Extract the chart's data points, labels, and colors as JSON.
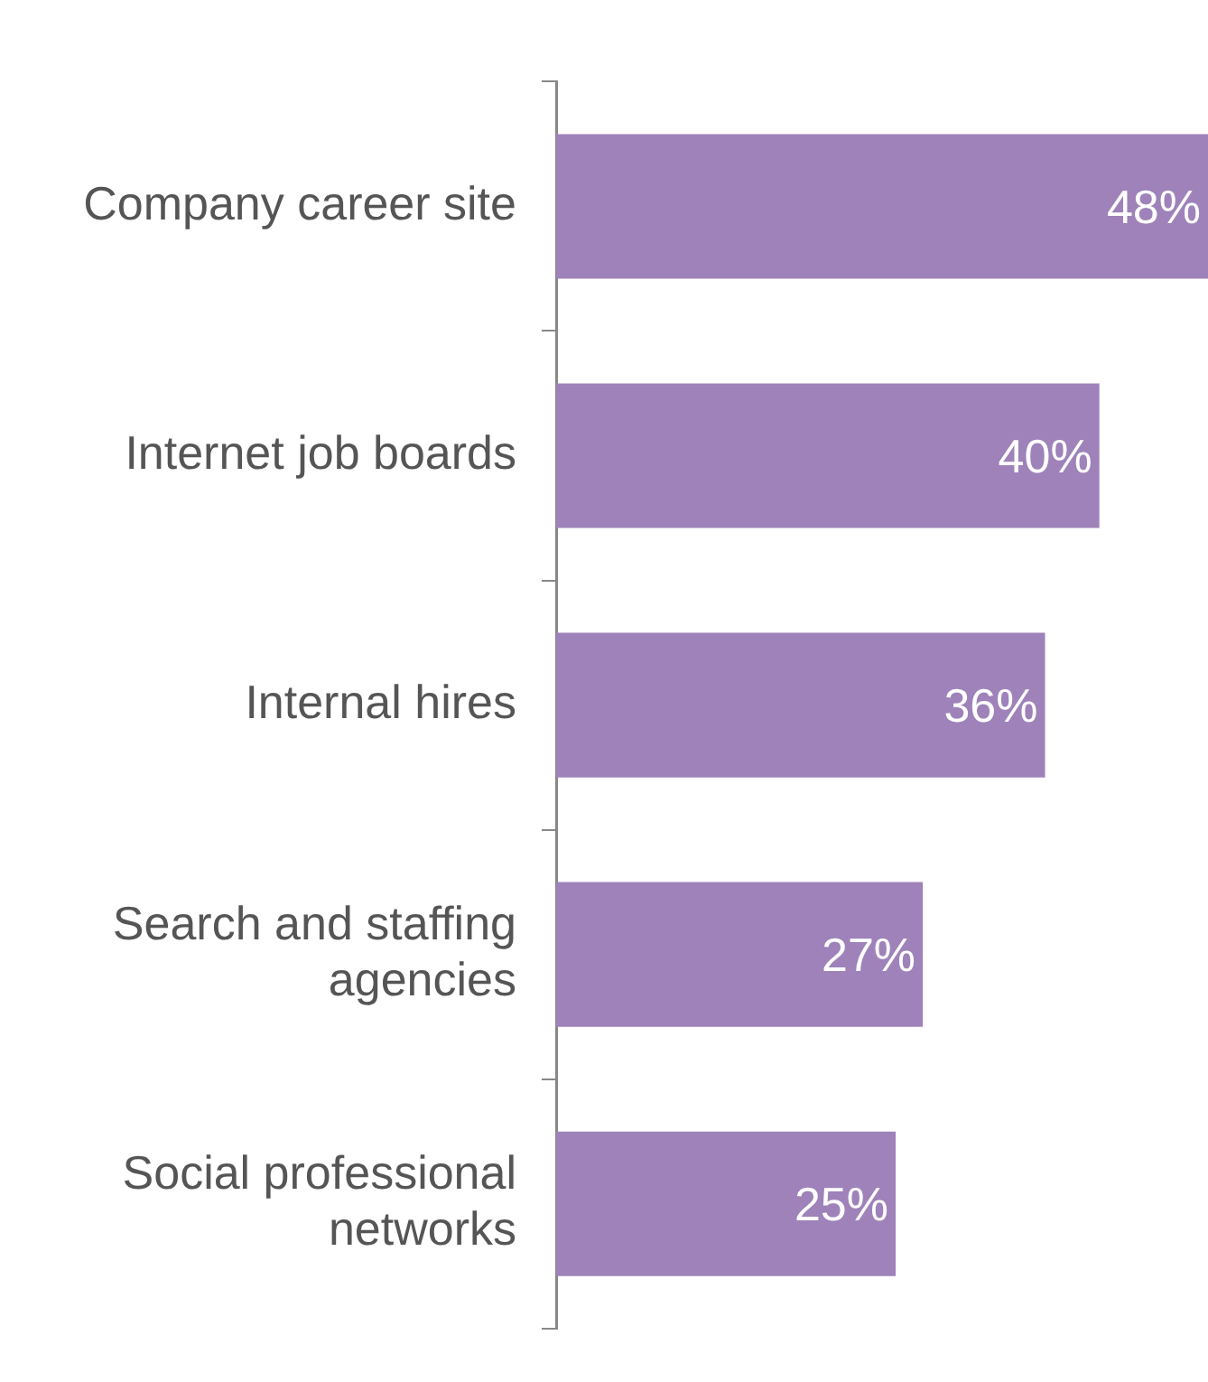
{
  "chart_data": {
    "type": "bar",
    "orientation": "horizontal",
    "categories": [
      "Company career site",
      "Internet job boards",
      "Internal hires",
      "Search and staffing agencies",
      "Social professional networks"
    ],
    "values": [
      48,
      40,
      36,
      27,
      25
    ],
    "value_labels": [
      "48%",
      "40%",
      "36%",
      "27%",
      "25%"
    ],
    "color": "#9e82b9"
  }
}
